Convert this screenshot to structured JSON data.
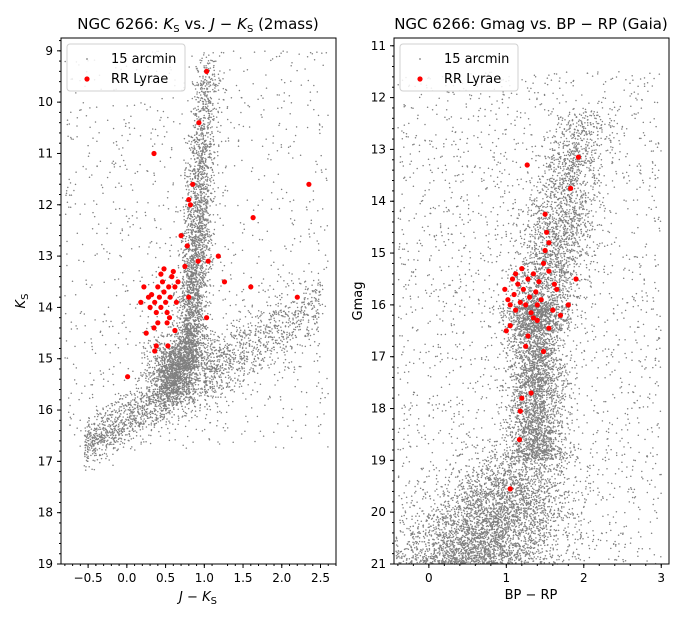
{
  "chart_data": [
    {
      "type": "scatter",
      "title": "NGC 6266: Ks vs. J − Ks (2mass)",
      "title_parts": {
        "pre": "NGC 6266: ",
        "m1": "K",
        "s1": "S",
        "mid": " vs. ",
        "m2": "J",
        "op": " − ",
        "m3": "K",
        "s3": "S",
        "post": " (2mass)"
      },
      "xlabel_parts": {
        "a": "J",
        "op": " − ",
        "b": "K",
        "sub": "S"
      },
      "ylabel_parts": {
        "a": "K",
        "sub": "S"
      },
      "xlim": [
        -0.85,
        2.7
      ],
      "ylim": [
        19,
        8.75
      ],
      "y_inverted": true,
      "xticks": [
        -0.5,
        0.0,
        0.5,
        1.0,
        1.5,
        2.0,
        2.5
      ],
      "xtick_labels": [
        "−0.5",
        "0.0",
        "0.5",
        "1.0",
        "1.5",
        "2.0",
        "2.5"
      ],
      "yticks": [
        9,
        10,
        11,
        12,
        13,
        14,
        15,
        16,
        17,
        18,
        19
      ],
      "ytick_labels": [
        "9",
        "10",
        "11",
        "12",
        "13",
        "14",
        "15",
        "16",
        "17",
        "18",
        "19"
      ],
      "legend": {
        "position": "upper left",
        "entries": [
          "15 arcmin",
          "RR Lyrae"
        ]
      },
      "colors": {
        "field": "#808080",
        "rrlyrae": "#ff0000"
      },
      "series": [
        {
          "name": "15 arcmin",
          "marker": "small gray dots",
          "density_components": [
            {
              "kind": "main-sequence-turnoff",
              "x_center": 0.62,
              "x_sd": 0.16,
              "y_center": 15.3,
              "y_sd": 0.35,
              "weight": 0.22
            },
            {
              "kind": "red-giant-branch",
              "x_range": [
                0.55,
                1.15
              ],
              "y_range": [
                9.0,
                15.2
              ],
              "weight": 0.38
            },
            {
              "kind": "lower-main-sequence",
              "x_range": [
                -0.55,
                0.55
              ],
              "y_range": [
                15.6,
                16.9
              ],
              "weight": 0.12
            },
            {
              "kind": "red-field-plume",
              "x_range": [
                1.0,
                2.5
              ],
              "y_range": [
                13.6,
                15.6
              ],
              "weight": 0.13
            },
            {
              "kind": "scattered-field",
              "x_range": [
                -0.8,
                2.6
              ],
              "y_range": [
                9.0,
                16.8
              ],
              "weight": 0.15
            }
          ]
        },
        {
          "name": "RR Lyrae",
          "points": [
            [
              0.35,
              11.0
            ],
            [
              1.03,
              9.4
            ],
            [
              0.93,
              10.4
            ],
            [
              0.85,
              11.6
            ],
            [
              0.8,
              11.9
            ],
            [
              0.82,
              12.0
            ],
            [
              2.35,
              11.6
            ],
            [
              1.63,
              12.25
            ],
            [
              0.7,
              12.6
            ],
            [
              0.78,
              12.8
            ],
            [
              1.18,
              13.0
            ],
            [
              0.75,
              13.2
            ],
            [
              0.92,
              13.1
            ],
            [
              1.05,
              13.1
            ],
            [
              1.26,
              13.5
            ],
            [
              1.6,
              13.6
            ],
            [
              2.2,
              13.8
            ],
            [
              0.18,
              13.9
            ],
            [
              0.22,
              13.6
            ],
            [
              0.28,
              13.8
            ],
            [
              0.3,
              14.0
            ],
            [
              0.32,
              13.75
            ],
            [
              0.36,
              13.9
            ],
            [
              0.38,
              14.1
            ],
            [
              0.4,
              13.6
            ],
            [
              0.42,
              13.8
            ],
            [
              0.44,
              14.0
            ],
            [
              0.46,
              13.5
            ],
            [
              0.48,
              13.7
            ],
            [
              0.5,
              13.9
            ],
            [
              0.52,
              14.1
            ],
            [
              0.54,
              13.6
            ],
            [
              0.56,
              13.8
            ],
            [
              0.58,
              13.4
            ],
            [
              0.6,
              13.3
            ],
            [
              0.62,
              13.6
            ],
            [
              0.64,
              13.9
            ],
            [
              0.66,
              13.5
            ],
            [
              0.4,
              14.3
            ],
            [
              0.35,
              14.4
            ],
            [
              0.52,
              14.3
            ],
            [
              0.62,
              14.45
            ],
            [
              0.25,
              14.5
            ],
            [
              0.38,
              14.75
            ],
            [
              0.36,
              14.85
            ],
            [
              0.53,
              14.75
            ],
            [
              0.01,
              15.35
            ],
            [
              0.8,
              13.8
            ],
            [
              1.03,
              14.2
            ],
            [
              0.48,
              13.25
            ],
            [
              0.55,
              14.2
            ],
            [
              0.44,
              13.35
            ]
          ]
        }
      ]
    },
    {
      "type": "scatter",
      "title": "NGC 6266: Gmag vs. BP − RP (Gaia)",
      "title_parts": {
        "pre": "NGC 6266: Gmag vs. BP",
        "op": " − ",
        "post": "RP (Gaia)"
      },
      "xlabel": "BP − RP",
      "ylabel": "Gmag",
      "xlim": [
        -0.45,
        3.1
      ],
      "ylim": [
        21,
        10.85
      ],
      "y_inverted": true,
      "xticks": [
        0,
        1,
        2,
        3
      ],
      "xtick_labels": [
        "0",
        "1",
        "2",
        "3"
      ],
      "yticks": [
        11,
        12,
        13,
        14,
        15,
        16,
        17,
        18,
        19,
        20,
        21
      ],
      "ytick_labels": [
        "11",
        "12",
        "13",
        "14",
        "15",
        "16",
        "17",
        "18",
        "19",
        "20",
        "21"
      ],
      "legend": {
        "position": "upper left",
        "entries": [
          "15 arcmin",
          "RR Lyrae"
        ]
      },
      "colors": {
        "field": "#808080",
        "rrlyrae": "#ff0000"
      },
      "series": [
        {
          "name": "15 arcmin",
          "marker": "small gray dots",
          "density_components": [
            {
              "kind": "main-sequence-bulk",
              "x_range": [
                -0.4,
                2.1
              ],
              "y_range": [
                18.5,
                21.0
              ],
              "weight": 0.33
            },
            {
              "kind": "turnoff-column",
              "x_range": [
                1.0,
                1.8
              ],
              "y_range": [
                16.0,
                19.0
              ],
              "weight": 0.25
            },
            {
              "kind": "giant-branch",
              "x_range": [
                1.0,
                2.3
              ],
              "y_range": [
                12.2,
                16.5
              ],
              "weight": 0.22
            },
            {
              "kind": "scattered-field",
              "x_range": [
                -0.4,
                3.0
              ],
              "y_range": [
                11.5,
                21.0
              ],
              "weight": 0.2
            }
          ]
        },
        {
          "name": "RR Lyrae",
          "points": [
            [
              1.27,
              13.3
            ],
            [
              1.93,
              13.15
            ],
            [
              1.83,
              13.75
            ],
            [
              1.5,
              14.25
            ],
            [
              1.52,
              14.6
            ],
            [
              1.55,
              14.8
            ],
            [
              1.5,
              14.95
            ],
            [
              1.48,
              15.2
            ],
            [
              1.9,
              15.5
            ],
            [
              1.62,
              15.6
            ],
            [
              1.8,
              16.0
            ],
            [
              1.7,
              16.2
            ],
            [
              1.55,
              16.45
            ],
            [
              1.28,
              16.6
            ],
            [
              1.25,
              16.8
            ],
            [
              1.48,
              16.9
            ],
            [
              1.2,
              17.8
            ],
            [
              1.32,
              17.7
            ],
            [
              1.18,
              18.05
            ],
            [
              1.17,
              18.6
            ],
            [
              1.05,
              19.55
            ],
            [
              0.98,
              15.7
            ],
            [
              1.02,
              15.9
            ],
            [
              1.05,
              16.0
            ],
            [
              1.08,
              15.5
            ],
            [
              1.1,
              15.8
            ],
            [
              1.12,
              16.1
            ],
            [
              1.15,
              15.6
            ],
            [
              1.18,
              15.95
            ],
            [
              1.2,
              15.3
            ],
            [
              1.22,
              15.7
            ],
            [
              1.25,
              16.0
            ],
            [
              1.28,
              15.5
            ],
            [
              1.3,
              15.85
            ],
            [
              1.32,
              16.15
            ],
            [
              1.35,
              15.4
            ],
            [
              1.38,
              15.75
            ],
            [
              1.4,
              16.0
            ],
            [
              1.42,
              15.55
            ],
            [
              1.45,
              15.9
            ],
            [
              1.0,
              16.5
            ],
            [
              1.05,
              16.4
            ],
            [
              1.4,
              16.3
            ],
            [
              1.6,
              16.1
            ],
            [
              1.65,
              15.7
            ],
            [
              1.55,
              15.35
            ],
            [
              1.12,
              15.4
            ],
            [
              1.35,
              16.25
            ]
          ]
        }
      ]
    }
  ]
}
